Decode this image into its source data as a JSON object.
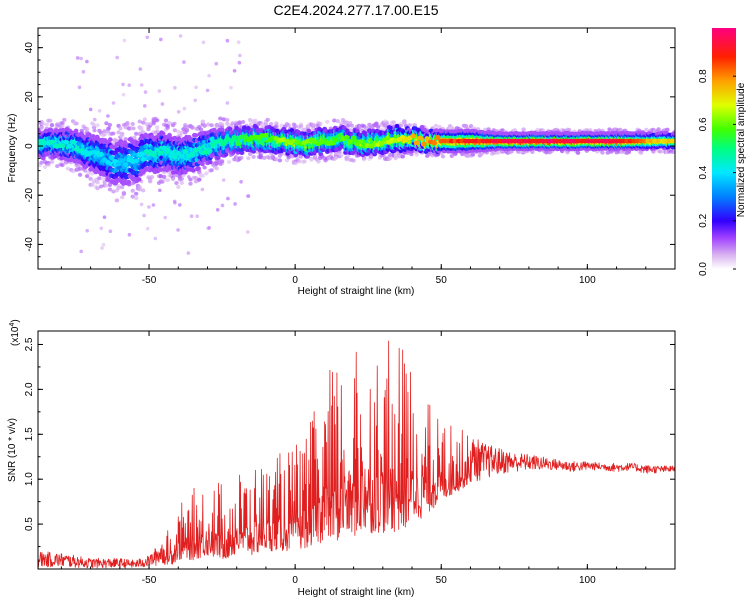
{
  "chart_data": [
    {
      "type": "heatmap",
      "title": "C2E4.2024.277.17.00.E15",
      "xlabel": "Height of straight line (km)",
      "ylabel": "Frequency (Hz)",
      "xlim": [
        -88,
        130
      ],
      "ylim": [
        -50,
        48
      ],
      "xticks": [
        "-50",
        "0",
        "50",
        "100"
      ],
      "yticks": [
        "40",
        "20",
        "0",
        "-20",
        "-40"
      ],
      "grid": false,
      "colorbar": {
        "label": "Normalized spectral amplitude",
        "range": [
          0,
          1
        ],
        "ticks": [
          "0.0",
          "0.2",
          "0.4",
          "0.6",
          "0.8"
        ],
        "colors": [
          "#ffffff",
          "#d8b0f0",
          "#a040ff",
          "#3000ff",
          "#0080ff",
          "#00e8ff",
          "#00ff80",
          "#40ff00",
          "#e0ff00",
          "#ffa000",
          "#ff2000",
          "#ff0080"
        ]
      },
      "ridge": {
        "x": [
          -88,
          -80,
          -75,
          -70,
          -65,
          -60,
          -55,
          -50,
          -45,
          -40,
          -35,
          -30,
          -25,
          -20,
          -15,
          -10,
          -5,
          0,
          5,
          10,
          15,
          20,
          25,
          30,
          35,
          40,
          45,
          50,
          55,
          60,
          70,
          80,
          90,
          100,
          110,
          120,
          130
        ],
        "freq": [
          1,
          1,
          0,
          -3,
          -5,
          -7,
          -6,
          -3,
          -2,
          -4,
          -3,
          -1,
          2,
          2,
          3,
          3,
          2,
          1,
          1,
          2,
          3,
          2,
          1,
          2,
          3,
          3,
          2,
          2,
          2,
          2,
          2,
          2,
          2,
          2,
          2,
          2,
          2
        ],
        "peak_amplitude": [
          0.45,
          0.45,
          0.45,
          0.42,
          0.4,
          0.4,
          0.42,
          0.45,
          0.45,
          0.45,
          0.45,
          0.48,
          0.5,
          0.55,
          0.6,
          0.62,
          0.65,
          0.65,
          0.62,
          0.62,
          0.6,
          0.62,
          0.65,
          0.65,
          0.7,
          0.75,
          0.8,
          0.85,
          0.9,
          0.92,
          0.95,
          0.97,
          0.97,
          0.96,
          0.95,
          0.8,
          0.75
        ],
        "width_hz": [
          6,
          6,
          7,
          8,
          9,
          10,
          10,
          9,
          8,
          8,
          8,
          7,
          6,
          5,
          5,
          5,
          5,
          5,
          5,
          5,
          5,
          5,
          5,
          5,
          5,
          4,
          4,
          4,
          4,
          4,
          3,
          3,
          3,
          3,
          3,
          3,
          3
        ]
      }
    },
    {
      "type": "line",
      "xlabel": "Height of straight line (km)",
      "ylabel": "SNR (10 * v/v)",
      "y_multiplier": "(x10",
      "y_multiplier_exp": "4",
      "xlim": [
        -88,
        130
      ],
      "ylim": [
        0,
        2.65
      ],
      "xticks": [
        "-50",
        "0",
        "50",
        "100"
      ],
      "yticks": [
        "2.5",
        "2.0",
        "1.5",
        "1.0",
        "0.5"
      ],
      "grid": false,
      "color": "#e02020",
      "series": [
        {
          "envelope_x": [
            -88,
            -80,
            -70,
            -60,
            -55,
            -50,
            -45,
            -42,
            -40,
            -35,
            -30,
            -25,
            -20,
            -15,
            -10,
            -5,
            0,
            5,
            10,
            15,
            20,
            25,
            30,
            35,
            40,
            45,
            50,
            55,
            60,
            65,
            70,
            75,
            80,
            85,
            90,
            95,
            100,
            105,
            110,
            115,
            120,
            125,
            130
          ],
          "envelope_high": [
            0.2,
            0.18,
            0.12,
            0.12,
            0.1,
            0.15,
            0.35,
            0.55,
            0.7,
            0.9,
            1.0,
            1.0,
            1.1,
            1.2,
            1.2,
            1.3,
            1.4,
            1.6,
            2.2,
            2.4,
            2.45,
            2.55,
            2.5,
            2.6,
            2.3,
            1.9,
            1.7,
            1.6,
            1.5,
            1.4,
            1.35,
            1.3,
            1.28,
            1.25,
            1.22,
            1.2,
            1.2,
            1.18,
            1.18,
            1.18,
            1.16,
            1.15,
            1.15
          ],
          "envelope_low": [
            0.02,
            0.02,
            0.01,
            0.01,
            0.01,
            0.02,
            0.05,
            0.05,
            0.1,
            0.1,
            0.15,
            0.1,
            0.15,
            0.15,
            0.2,
            0.2,
            0.2,
            0.25,
            0.3,
            0.3,
            0.35,
            0.4,
            0.4,
            0.4,
            0.5,
            0.6,
            0.75,
            0.85,
            0.95,
            1.0,
            1.05,
            1.08,
            1.1,
            1.1,
            1.1,
            1.08,
            1.1,
            1.1,
            1.08,
            1.1,
            1.06,
            1.07,
            1.08
          ]
        }
      ]
    }
  ]
}
